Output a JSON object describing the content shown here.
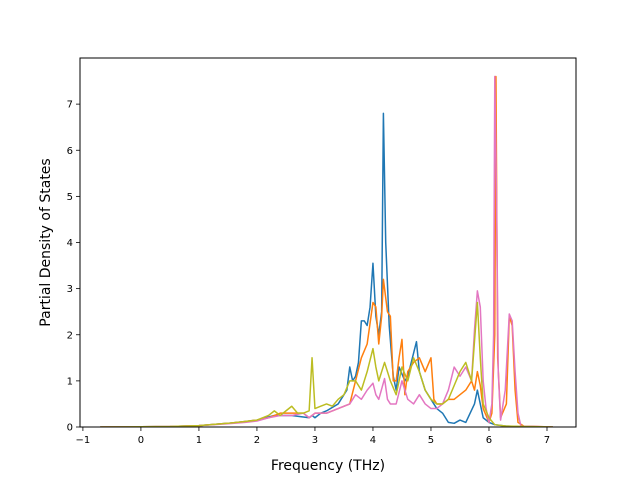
{
  "chart_data": {
    "type": "line",
    "title": "",
    "xlabel": "Frequency (THz)",
    "ylabel": "Partial Density of States",
    "xlim": [
      -1.05,
      7.5
    ],
    "ylim": [
      0,
      8.0
    ],
    "x_ticks": [
      -1,
      0,
      1,
      2,
      3,
      4,
      5,
      6,
      7
    ],
    "y_ticks": [
      0,
      1,
      2,
      3,
      4,
      5,
      6,
      7
    ],
    "grid": false,
    "legend": "none",
    "series": [
      {
        "color": "#1f77b4",
        "points": [
          [
            -0.7,
            0
          ],
          [
            0.5,
            0.01
          ],
          [
            1.0,
            0.03
          ],
          [
            1.5,
            0.08
          ],
          [
            1.8,
            0.12
          ],
          [
            2.0,
            0.15
          ],
          [
            2.3,
            0.25
          ],
          [
            2.6,
            0.25
          ],
          [
            2.9,
            0.2
          ],
          [
            2.95,
            0.25
          ],
          [
            3.0,
            0.2
          ],
          [
            3.1,
            0.3
          ],
          [
            3.2,
            0.35
          ],
          [
            3.4,
            0.5
          ],
          [
            3.55,
            0.8
          ],
          [
            3.6,
            1.3
          ],
          [
            3.65,
            1.0
          ],
          [
            3.7,
            1.1
          ],
          [
            3.75,
            1.4
          ],
          [
            3.8,
            2.3
          ],
          [
            3.85,
            2.3
          ],
          [
            3.9,
            2.2
          ],
          [
            3.95,
            2.6
          ],
          [
            4.0,
            3.55
          ],
          [
            4.05,
            2.4
          ],
          [
            4.1,
            2.0
          ],
          [
            4.15,
            2.5
          ],
          [
            4.18,
            6.8
          ],
          [
            4.22,
            4.0
          ],
          [
            4.28,
            2.2
          ],
          [
            4.35,
            1.1
          ],
          [
            4.4,
            0.8
          ],
          [
            4.45,
            1.3
          ],
          [
            4.55,
            1.0
          ],
          [
            4.6,
            1.1
          ],
          [
            4.7,
            1.6
          ],
          [
            4.75,
            1.85
          ],
          [
            4.8,
            1.2
          ],
          [
            4.9,
            0.8
          ],
          [
            5.0,
            0.6
          ],
          [
            5.1,
            0.4
          ],
          [
            5.2,
            0.3
          ],
          [
            5.3,
            0.1
          ],
          [
            5.4,
            0.08
          ],
          [
            5.5,
            0.15
          ],
          [
            5.6,
            0.1
          ],
          [
            5.75,
            0.5
          ],
          [
            5.8,
            0.8
          ],
          [
            5.85,
            0.5
          ],
          [
            5.9,
            0.2
          ],
          [
            6.0,
            0.1
          ],
          [
            6.1,
            0.05
          ],
          [
            6.3,
            0.02
          ],
          [
            6.5,
            0.01
          ],
          [
            7.1,
            0
          ]
        ]
      },
      {
        "color": "#ff7f0e",
        "points": [
          [
            -0.7,
            0
          ],
          [
            0.5,
            0.01
          ],
          [
            1.0,
            0.03
          ],
          [
            1.5,
            0.08
          ],
          [
            1.8,
            0.12
          ],
          [
            2.0,
            0.15
          ],
          [
            2.2,
            0.2
          ],
          [
            2.4,
            0.3
          ],
          [
            2.6,
            0.3
          ],
          [
            2.8,
            0.3
          ],
          [
            2.9,
            0.2
          ],
          [
            3.0,
            0.3
          ],
          [
            3.2,
            0.3
          ],
          [
            3.4,
            0.4
          ],
          [
            3.6,
            0.5
          ],
          [
            3.8,
            1.5
          ],
          [
            3.9,
            1.8
          ],
          [
            4.0,
            2.7
          ],
          [
            4.05,
            2.6
          ],
          [
            4.1,
            1.8
          ],
          [
            4.15,
            2.4
          ],
          [
            4.18,
            3.2
          ],
          [
            4.22,
            2.8
          ],
          [
            4.25,
            2.5
          ],
          [
            4.3,
            2.4
          ],
          [
            4.35,
            1.0
          ],
          [
            4.4,
            1.0
          ],
          [
            4.45,
            1.5
          ],
          [
            4.5,
            1.9
          ],
          [
            4.55,
            0.7
          ],
          [
            4.6,
            1.2
          ],
          [
            4.7,
            1.4
          ],
          [
            4.8,
            1.5
          ],
          [
            4.9,
            1.2
          ],
          [
            5.0,
            1.5
          ],
          [
            5.05,
            0.6
          ],
          [
            5.1,
            0.5
          ],
          [
            5.2,
            0.5
          ],
          [
            5.3,
            0.6
          ],
          [
            5.4,
            0.6
          ],
          [
            5.5,
            0.7
          ],
          [
            5.6,
            0.8
          ],
          [
            5.7,
            1.0
          ],
          [
            5.75,
            0.8
          ],
          [
            5.8,
            1.2
          ],
          [
            5.85,
            0.9
          ],
          [
            5.9,
            0.4
          ],
          [
            6.0,
            0.1
          ],
          [
            6.05,
            0.3
          ],
          [
            6.1,
            2.0
          ],
          [
            6.12,
            7.6
          ],
          [
            6.15,
            1.5
          ],
          [
            6.2,
            0.2
          ],
          [
            6.3,
            0.5
          ],
          [
            6.35,
            2.4
          ],
          [
            6.4,
            2.2
          ],
          [
            6.45,
            0.8
          ],
          [
            6.5,
            0.1
          ],
          [
            6.6,
            0.02
          ],
          [
            7.1,
            0
          ]
        ]
      },
      {
        "color": "#e377c2",
        "points": [
          [
            -0.7,
            0
          ],
          [
            0.5,
            0.01
          ],
          [
            1.0,
            0.03
          ],
          [
            1.5,
            0.07
          ],
          [
            1.8,
            0.1
          ],
          [
            2.0,
            0.13
          ],
          [
            2.2,
            0.2
          ],
          [
            2.4,
            0.25
          ],
          [
            2.6,
            0.25
          ],
          [
            2.8,
            0.3
          ],
          [
            2.9,
            0.2
          ],
          [
            3.0,
            0.3
          ],
          [
            3.2,
            0.3
          ],
          [
            3.4,
            0.4
          ],
          [
            3.6,
            0.5
          ],
          [
            3.7,
            0.7
          ],
          [
            3.8,
            0.6
          ],
          [
            3.9,
            0.8
          ],
          [
            4.0,
            0.95
          ],
          [
            4.05,
            0.7
          ],
          [
            4.1,
            0.6
          ],
          [
            4.2,
            1.05
          ],
          [
            4.25,
            0.6
          ],
          [
            4.3,
            0.5
          ],
          [
            4.4,
            0.5
          ],
          [
            4.5,
            1.0
          ],
          [
            4.6,
            0.6
          ],
          [
            4.7,
            0.5
          ],
          [
            4.8,
            0.7
          ],
          [
            4.9,
            0.5
          ],
          [
            5.0,
            0.4
          ],
          [
            5.1,
            0.4
          ],
          [
            5.2,
            0.5
          ],
          [
            5.3,
            0.8
          ],
          [
            5.4,
            1.3
          ],
          [
            5.5,
            1.1
          ],
          [
            5.6,
            1.3
          ],
          [
            5.7,
            1.0
          ],
          [
            5.75,
            2.1
          ],
          [
            5.8,
            2.95
          ],
          [
            5.85,
            2.6
          ],
          [
            5.9,
            1.0
          ],
          [
            5.95,
            0.4
          ],
          [
            6.0,
            0.1
          ],
          [
            6.05,
            0.5
          ],
          [
            6.08,
            2.0
          ],
          [
            6.1,
            7.6
          ],
          [
            6.13,
            5.0
          ],
          [
            6.16,
            1.2
          ],
          [
            6.2,
            0.15
          ],
          [
            6.28,
            0.8
          ],
          [
            6.35,
            2.45
          ],
          [
            6.4,
            2.3
          ],
          [
            6.45,
            1.2
          ],
          [
            6.5,
            0.3
          ],
          [
            6.55,
            0.02
          ],
          [
            7.1,
            0
          ]
        ]
      },
      {
        "color": "#bcbd22",
        "points": [
          [
            -0.7,
            0
          ],
          [
            0.5,
            0.01
          ],
          [
            1.0,
            0.03
          ],
          [
            1.5,
            0.08
          ],
          [
            1.8,
            0.12
          ],
          [
            2.0,
            0.15
          ],
          [
            2.2,
            0.25
          ],
          [
            2.3,
            0.35
          ],
          [
            2.4,
            0.25
          ],
          [
            2.5,
            0.35
          ],
          [
            2.6,
            0.45
          ],
          [
            2.7,
            0.3
          ],
          [
            2.8,
            0.3
          ],
          [
            2.9,
            0.35
          ],
          [
            2.95,
            1.5
          ],
          [
            3.0,
            0.4
          ],
          [
            3.1,
            0.45
          ],
          [
            3.2,
            0.5
          ],
          [
            3.3,
            0.45
          ],
          [
            3.4,
            0.6
          ],
          [
            3.5,
            0.7
          ],
          [
            3.6,
            1.0
          ],
          [
            3.7,
            1.0
          ],
          [
            3.8,
            0.8
          ],
          [
            3.9,
            1.2
          ],
          [
            4.0,
            1.7
          ],
          [
            4.05,
            1.3
          ],
          [
            4.1,
            1.0
          ],
          [
            4.2,
            1.4
          ],
          [
            4.3,
            1.0
          ],
          [
            4.4,
            0.7
          ],
          [
            4.5,
            1.3
          ],
          [
            4.6,
            1.0
          ],
          [
            4.7,
            1.5
          ],
          [
            4.8,
            1.2
          ],
          [
            4.9,
            0.8
          ],
          [
            5.0,
            0.6
          ],
          [
            5.1,
            0.5
          ],
          [
            5.2,
            0.5
          ],
          [
            5.3,
            0.6
          ],
          [
            5.4,
            0.9
          ],
          [
            5.5,
            1.2
          ],
          [
            5.6,
            1.4
          ],
          [
            5.7,
            1.0
          ],
          [
            5.8,
            2.7
          ],
          [
            5.85,
            1.5
          ],
          [
            5.9,
            0.5
          ],
          [
            6.0,
            0.2
          ],
          [
            6.1,
            0.05
          ],
          [
            6.3,
            0.02
          ],
          [
            7.1,
            0
          ]
        ]
      }
    ]
  }
}
